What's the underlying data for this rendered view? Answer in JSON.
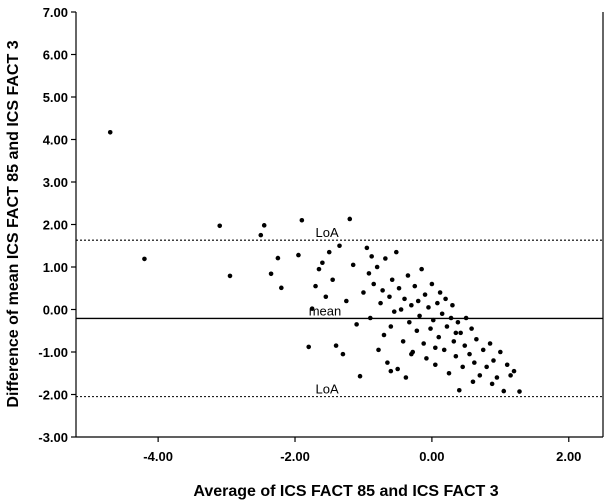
{
  "chart_data": {
    "type": "scatter",
    "xlabel": "Average of ICS FACT 85 and ICS FACT 3",
    "ylabel": "Difference of mean ICS FACT 85 and ICS FACT 3",
    "xlim": [
      -5.2,
      2.5
    ],
    "ylim": [
      -3.0,
      7.0
    ],
    "xticks": [
      -4.0,
      -2.0,
      0.0,
      2.0
    ],
    "xtick_labels": [
      "-4.00",
      "-2.00",
      "0.00",
      "2.00"
    ],
    "yticks": [
      -3.0,
      -2.0,
      -1.0,
      0.0,
      1.0,
      2.0,
      3.0,
      4.0,
      5.0,
      6.0,
      7.0
    ],
    "ytick_labels": [
      "-3.00",
      "-2.00",
      "-1.00",
      "0.00",
      "1.00",
      "2.00",
      "3.00",
      "4.00",
      "5.00",
      "6.00",
      "7.00"
    ],
    "grid": false,
    "reference_lines": [
      {
        "label": "LoA",
        "y": 1.63,
        "style": "dotted",
        "label_x": -1.7
      },
      {
        "label": "mean",
        "y": -0.21,
        "style": "solid",
        "label_x": -1.8
      },
      {
        "label": "LoA",
        "y": -2.05,
        "style": "dotted",
        "label_x": -1.7
      }
    ],
    "points": [
      {
        "x": -4.7,
        "y": 4.17
      },
      {
        "x": -4.2,
        "y": 1.19
      },
      {
        "x": -3.1,
        "y": 1.97
      },
      {
        "x": -2.95,
        "y": 0.79
      },
      {
        "x": -2.5,
        "y": 1.75
      },
      {
        "x": -2.45,
        "y": 1.98
      },
      {
        "x": -2.35,
        "y": 0.84
      },
      {
        "x": -2.25,
        "y": 1.21
      },
      {
        "x": -2.2,
        "y": 0.51
      },
      {
        "x": -1.95,
        "y": 1.28
      },
      {
        "x": -1.9,
        "y": 2.1
      },
      {
        "x": -1.8,
        "y": -0.88
      },
      {
        "x": -1.75,
        "y": 0.02
      },
      {
        "x": -1.7,
        "y": 0.55
      },
      {
        "x": -1.65,
        "y": 0.95
      },
      {
        "x": -1.6,
        "y": 1.1
      },
      {
        "x": -1.55,
        "y": 0.3
      },
      {
        "x": -1.5,
        "y": 1.35
      },
      {
        "x": -1.45,
        "y": 0.7
      },
      {
        "x": -1.4,
        "y": -0.85
      },
      {
        "x": -1.35,
        "y": 1.5
      },
      {
        "x": -1.3,
        "y": -1.05
      },
      {
        "x": -1.25,
        "y": 0.2
      },
      {
        "x": -1.2,
        "y": 2.13
      },
      {
        "x": -1.15,
        "y": 1.05
      },
      {
        "x": -1.1,
        "y": -0.35
      },
      {
        "x": -1.05,
        "y": -1.57
      },
      {
        "x": -1.0,
        "y": 0.4
      },
      {
        "x": -0.95,
        "y": 1.45
      },
      {
        "x": -0.92,
        "y": 0.85
      },
      {
        "x": -0.9,
        "y": -0.2
      },
      {
        "x": -0.88,
        "y": 1.25
      },
      {
        "x": -0.85,
        "y": 0.6
      },
      {
        "x": -0.8,
        "y": 1.0
      },
      {
        "x": -0.78,
        "y": -0.95
      },
      {
        "x": -0.75,
        "y": 0.15
      },
      {
        "x": -0.72,
        "y": 0.45
      },
      {
        "x": -0.7,
        "y": -0.6
      },
      {
        "x": -0.68,
        "y": 1.2
      },
      {
        "x": -0.65,
        "y": -1.25
      },
      {
        "x": -0.62,
        "y": 0.3
      },
      {
        "x": -0.6,
        "y": -0.4
      },
      {
        "x": -0.58,
        "y": 0.7
      },
      {
        "x": -0.55,
        "y": -0.05
      },
      {
        "x": -0.52,
        "y": 1.35
      },
      {
        "x": -0.5,
        "y": -1.4
      },
      {
        "x": -0.48,
        "y": 0.5
      },
      {
        "x": -0.45,
        "y": 0.0
      },
      {
        "x": -0.42,
        "y": -0.75
      },
      {
        "x": -0.4,
        "y": 0.25
      },
      {
        "x": -0.38,
        "y": -1.6
      },
      {
        "x": -0.35,
        "y": 0.8
      },
      {
        "x": -0.33,
        "y": -0.3
      },
      {
        "x": -0.3,
        "y": 0.1
      },
      {
        "x": -0.28,
        "y": -1.0
      },
      {
        "x": -0.25,
        "y": 0.55
      },
      {
        "x": -0.22,
        "y": -0.5
      },
      {
        "x": -0.2,
        "y": 0.2
      },
      {
        "x": -0.18,
        "y": -0.15
      },
      {
        "x": -0.15,
        "y": 0.95
      },
      {
        "x": -0.12,
        "y": -0.8
      },
      {
        "x": -0.1,
        "y": 0.35
      },
      {
        "x": -0.08,
        "y": -1.15
      },
      {
        "x": -0.05,
        "y": 0.05
      },
      {
        "x": -0.02,
        "y": -0.45
      },
      {
        "x": 0.0,
        "y": 0.6
      },
      {
        "x": 0.02,
        "y": -0.25
      },
      {
        "x": 0.05,
        "y": -1.3
      },
      {
        "x": 0.08,
        "y": 0.15
      },
      {
        "x": 0.1,
        "y": -0.65
      },
      {
        "x": 0.12,
        "y": 0.4
      },
      {
        "x": 0.15,
        "y": -0.1
      },
      {
        "x": 0.18,
        "y": -0.95
      },
      {
        "x": 0.2,
        "y": 0.25
      },
      {
        "x": 0.22,
        "y": -0.4
      },
      {
        "x": 0.25,
        "y": -1.5
      },
      {
        "x": 0.28,
        "y": -0.2
      },
      {
        "x": 0.3,
        "y": 0.1
      },
      {
        "x": 0.32,
        "y": -0.75
      },
      {
        "x": 0.35,
        "y": -1.1
      },
      {
        "x": 0.38,
        "y": -0.3
      },
      {
        "x": 0.4,
        "y": -1.9
      },
      {
        "x": 0.42,
        "y": -0.55
      },
      {
        "x": 0.45,
        "y": -1.35
      },
      {
        "x": 0.48,
        "y": -0.85
      },
      {
        "x": 0.5,
        "y": -0.2
      },
      {
        "x": 0.55,
        "y": -1.05
      },
      {
        "x": 0.58,
        "y": -0.45
      },
      {
        "x": 0.62,
        "y": -1.25
      },
      {
        "x": 0.65,
        "y": -0.7
      },
      {
        "x": 0.7,
        "y": -1.55
      },
      {
        "x": 0.75,
        "y": -0.95
      },
      {
        "x": 0.8,
        "y": -1.35
      },
      {
        "x": 0.85,
        "y": -0.8
      },
      {
        "x": 0.9,
        "y": -1.2
      },
      {
        "x": 0.95,
        "y": -1.6
      },
      {
        "x": 1.0,
        "y": -1.0
      },
      {
        "x": 1.05,
        "y": -1.92
      },
      {
        "x": 1.1,
        "y": -1.3
      },
      {
        "x": 1.15,
        "y": -1.55
      },
      {
        "x": 1.2,
        "y": -1.45
      },
      {
        "x": 1.28,
        "y": -1.93
      },
      {
        "x": -0.6,
        "y": -1.45
      },
      {
        "x": -0.3,
        "y": -1.05
      },
      {
        "x": 0.05,
        "y": -0.9
      },
      {
        "x": 0.35,
        "y": -0.55
      },
      {
        "x": 0.6,
        "y": -1.7
      },
      {
        "x": 0.88,
        "y": -1.75
      }
    ]
  }
}
